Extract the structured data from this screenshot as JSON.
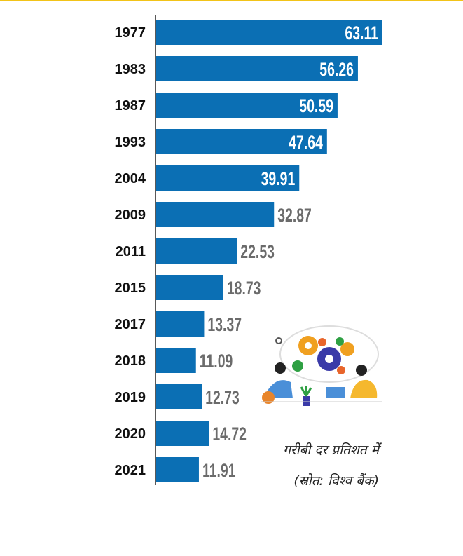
{
  "chart_data": {
    "type": "bar",
    "orientation": "horizontal",
    "title": "",
    "categories": [
      "1977",
      "1983",
      "1987",
      "1993",
      "2004",
      "2009",
      "2011",
      "2015",
      "2017",
      "2018",
      "2019",
      "2020",
      "2021"
    ],
    "values": [
      63.11,
      56.26,
      50.59,
      47.64,
      39.91,
      32.87,
      22.53,
      18.73,
      13.37,
      11.09,
      12.73,
      14.72,
      11.91
    ],
    "value_labels": [
      "63.11",
      "56.26",
      "50.59",
      "47.64",
      "39.91",
      "32.87",
      "22.53",
      "18.73",
      "13.37",
      "11.09",
      "12.73",
      "14.72",
      "11.91"
    ],
    "xlim": [
      0,
      63.11
    ],
    "grid": false,
    "bar_color": "#0b6fb4",
    "label_outside_color": "#6b6b6b",
    "label_inside_color": "#ffffff"
  },
  "caption": {
    "line1": "गरीबी दर प्रतिशत में",
    "line2": "(स्रोत: विश्व बैंक)"
  },
  "colors": {
    "accent": "#f2c318",
    "axis": "#222222"
  }
}
